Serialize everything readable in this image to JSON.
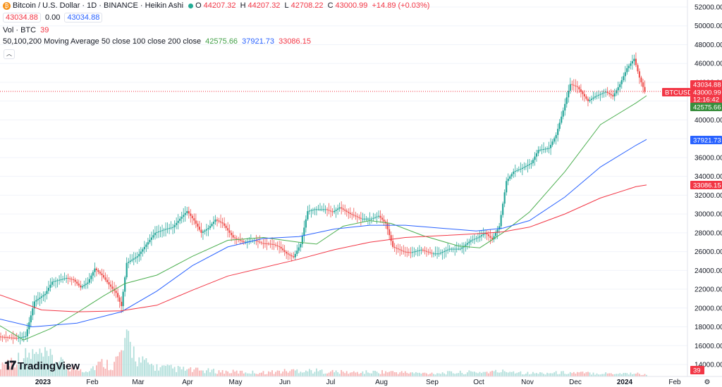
{
  "header": {
    "title": "Bitcoin / U.S. Dollar · 1D · BINANCE · Heikin Ashi",
    "ohlc": {
      "o_label": "O",
      "o": "44207.32",
      "h_label": "H",
      "h": "44207.32",
      "l_label": "L",
      "l": "42708.22",
      "c_label": "C",
      "c": "43000.99",
      "change": "+14.89 (+0.03%)"
    },
    "sell_price": "43034.88",
    "spread": "0.00",
    "buy_price": "43034.88"
  },
  "indicators": {
    "volume": {
      "label": "Vol · BTC",
      "value": "39"
    },
    "ma": {
      "label": "50,100,200 Moving Average 50 close 100 close 200 close",
      "v50": "42575.66",
      "v100": "37921.73",
      "v200": "33086.15"
    }
  },
  "brand": {
    "text": "TradingView"
  },
  "colors": {
    "up": "#26a69a",
    "down": "#ef5350",
    "ma50": "#4caf50",
    "ma100": "#2962ff",
    "ma200": "#f23645",
    "vol_up": "#b2dfdb",
    "vol_down": "#f7b5b5"
  },
  "axis_badges": {
    "last_price": "43034.88",
    "symbol": "BTCUSD",
    "close": "43000.99",
    "countdown": "12:16:42",
    "ma50": "42575.66",
    "ma100": "37921.73",
    "ma200": "33086.15",
    "volume": "39"
  },
  "chart_data": {
    "type": "candlestick",
    "price_axis": {
      "range": [
        12000,
        53000
      ],
      "ticks": [
        "52000.00",
        "50000.00",
        "48000.00",
        "46000.00",
        "44000.00",
        "42000.00",
        "40000.00",
        "38000.00",
        "36000.00",
        "34000.00",
        "32000.00",
        "30000.00",
        "28000.00",
        "26000.00",
        "24000.00",
        "22000.00",
        "20000.00",
        "18000.00",
        "16000.00",
        "14000.00"
      ]
    },
    "time_axis": {
      "labels": [
        "2023",
        "Feb",
        "Mar",
        "Apr",
        "May",
        "Jun",
        "Jul",
        "Aug",
        "Sep",
        "Oct",
        "Nov",
        "Dec",
        "2024",
        "Feb"
      ],
      "bold": [
        "2023",
        "2024"
      ]
    },
    "price_path": [
      [
        0,
        17000
      ],
      [
        6,
        16900
      ],
      [
        12,
        16800
      ],
      [
        17,
        17000
      ],
      [
        22,
        20700
      ],
      [
        28,
        21500
      ],
      [
        32,
        22800
      ],
      [
        36,
        23000
      ],
      [
        40,
        23200
      ],
      [
        44,
        23000
      ],
      [
        48,
        22200
      ],
      [
        52,
        22700
      ],
      [
        56,
        24200
      ],
      [
        60,
        23500
      ],
      [
        64,
        22500
      ],
      [
        68,
        21600
      ],
      [
        71,
        20200
      ],
      [
        74,
        24800
      ],
      [
        80,
        25500
      ],
      [
        86,
        27000
      ],
      [
        90,
        28000
      ],
      [
        96,
        28400
      ],
      [
        100,
        28600
      ],
      [
        104,
        29500
      ],
      [
        108,
        30300
      ],
      [
        112,
        29300
      ],
      [
        116,
        28000
      ],
      [
        120,
        28500
      ],
      [
        124,
        29400
      ],
      [
        128,
        29000
      ],
      [
        134,
        27500
      ],
      [
        140,
        27000
      ],
      [
        146,
        27200
      ],
      [
        150,
        26900
      ],
      [
        156,
        26800
      ],
      [
        160,
        26500
      ],
      [
        164,
        25800
      ],
      [
        168,
        25400
      ],
      [
        172,
        26800
      ],
      [
        176,
        30300
      ],
      [
        180,
        30500
      ],
      [
        186,
        30500
      ],
      [
        190,
        30200
      ],
      [
        194,
        30700
      ],
      [
        200,
        30000
      ],
      [
        206,
        29500
      ],
      [
        212,
        29500
      ],
      [
        216,
        29800
      ],
      [
        220,
        29000
      ],
      [
        224,
        26500
      ],
      [
        230,
        26000
      ],
      [
        234,
        25900
      ],
      [
        240,
        26200
      ],
      [
        246,
        25800
      ],
      [
        250,
        25800
      ],
      [
        256,
        26300
      ],
      [
        262,
        26300
      ],
      [
        268,
        27200
      ],
      [
        272,
        27500
      ],
      [
        276,
        28000
      ],
      [
        280,
        27300
      ],
      [
        284,
        28700
      ],
      [
        288,
        33500
      ],
      [
        292,
        34500
      ],
      [
        296,
        34800
      ],
      [
        302,
        35400
      ],
      [
        306,
        36800
      ],
      [
        312,
        37000
      ],
      [
        316,
        38400
      ],
      [
        320,
        41000
      ],
      [
        324,
        43800
      ],
      [
        328,
        43500
      ],
      [
        334,
        42000
      ],
      [
        338,
        42500
      ],
      [
        344,
        43000
      ],
      [
        348,
        42500
      ],
      [
        352,
        43800
      ],
      [
        356,
        45500
      ],
      [
        360,
        46500
      ],
      [
        363,
        44500
      ],
      [
        366,
        43000
      ]
    ],
    "days_total": 366,
    "moving_averages": {
      "ma50": [
        [
          0,
          18300
        ],
        [
          15,
          16600
        ],
        [
          30,
          17800
        ],
        [
          45,
          19500
        ],
        [
          60,
          21300
        ],
        [
          72,
          22600
        ],
        [
          90,
          23500
        ],
        [
          110,
          25500
        ],
        [
          130,
          27200
        ],
        [
          150,
          27500
        ],
        [
          170,
          27000
        ],
        [
          180,
          26800
        ],
        [
          195,
          28700
        ],
        [
          210,
          29300
        ],
        [
          222,
          29000
        ],
        [
          240,
          27700
        ],
        [
          260,
          26600
        ],
        [
          272,
          26400
        ],
        [
          285,
          28000
        ],
        [
          300,
          30200
        ],
        [
          320,
          34500
        ],
        [
          340,
          39500
        ],
        [
          360,
          41800
        ],
        [
          366,
          42575
        ]
      ],
      "ma100": [
        [
          0,
          18900
        ],
        [
          20,
          18000
        ],
        [
          45,
          18400
        ],
        [
          70,
          19600
        ],
        [
          90,
          21800
        ],
        [
          110,
          24500
        ],
        [
          130,
          26500
        ],
        [
          150,
          27400
        ],
        [
          170,
          27600
        ],
        [
          190,
          28400
        ],
        [
          210,
          28800
        ],
        [
          230,
          28800
        ],
        [
          250,
          28500
        ],
        [
          270,
          28200
        ],
        [
          285,
          28500
        ],
        [
          300,
          29300
        ],
        [
          320,
          31800
        ],
        [
          340,
          35000
        ],
        [
          360,
          37300
        ],
        [
          366,
          37921
        ]
      ],
      "ma200": [
        [
          0,
          21500
        ],
        [
          15,
          20500
        ],
        [
          25,
          19800
        ],
        [
          45,
          19600
        ],
        [
          70,
          19700
        ],
        [
          90,
          20300
        ],
        [
          110,
          21900
        ],
        [
          130,
          23400
        ],
        [
          150,
          24300
        ],
        [
          170,
          25200
        ],
        [
          190,
          26200
        ],
        [
          210,
          27000
        ],
        [
          230,
          27500
        ],
        [
          250,
          27700
        ],
        [
          270,
          27900
        ],
        [
          285,
          28100
        ],
        [
          300,
          28600
        ],
        [
          320,
          30000
        ],
        [
          340,
          31700
        ],
        [
          360,
          32900
        ],
        [
          366,
          33086
        ]
      ]
    },
    "volume_range": [
      0,
      100
    ],
    "volume_path": [
      [
        0,
        15
      ],
      [
        10,
        22
      ],
      [
        20,
        28
      ],
      [
        30,
        24
      ],
      [
        40,
        12
      ],
      [
        50,
        8
      ],
      [
        60,
        18
      ],
      [
        65,
        14
      ],
      [
        70,
        30
      ],
      [
        74,
        45
      ],
      [
        80,
        20
      ],
      [
        90,
        12
      ],
      [
        110,
        8
      ],
      [
        130,
        6
      ],
      [
        150,
        5
      ],
      [
        170,
        8
      ],
      [
        180,
        7
      ],
      [
        200,
        5
      ],
      [
        220,
        6
      ],
      [
        240,
        4
      ],
      [
        260,
        5
      ],
      [
        280,
        6
      ],
      [
        290,
        7
      ],
      [
        300,
        4
      ],
      [
        320,
        5
      ],
      [
        340,
        4
      ],
      [
        360,
        4
      ],
      [
        366,
        2
      ]
    ]
  }
}
